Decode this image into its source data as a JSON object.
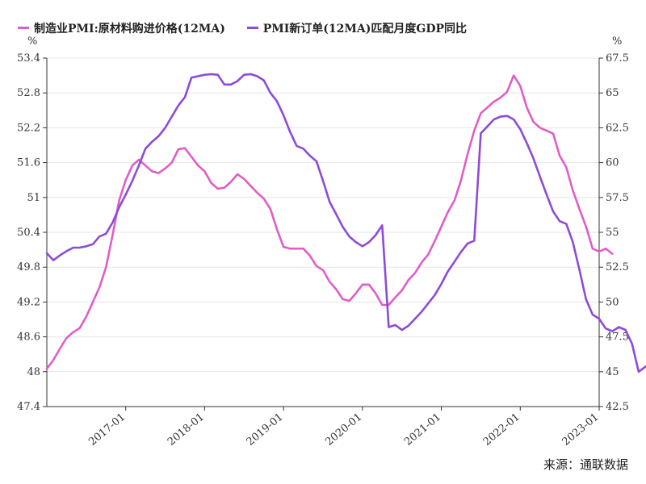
{
  "legend": [
    {
      "label": "制造业PMI:原材料购进价格(12MA)",
      "color": "#e05dc8"
    },
    {
      "label": "PMI新订单(12MA)匹配月度GDP同比",
      "color": "#8e4bd6"
    }
  ],
  "unit_left": "%",
  "unit_right": "%",
  "source": "来源：通联数据",
  "chart_data": {
    "type": "line",
    "x_range": [
      "2016-01",
      "2023-01"
    ],
    "x_ticks": [
      "2017-01",
      "2018-01",
      "2019-01",
      "2020-01",
      "2021-01",
      "2022-01",
      "2023-01"
    ],
    "y_left": {
      "ticks": [
        47.4,
        48,
        48.6,
        49.2,
        49.8,
        50.4,
        51,
        51.6,
        52.2,
        52.8,
        53.4
      ],
      "range": [
        47.4,
        53.4
      ]
    },
    "y_right": {
      "ticks": [
        42.5,
        45,
        47.5,
        50,
        52.5,
        55,
        57.5,
        60,
        62.5,
        65,
        67.5
      ],
      "range": [
        42.5,
        67.5
      ]
    },
    "grid": true,
    "legend_position": "top-left",
    "series": [
      {
        "name": "制造业PMI:原材料购进价格(12MA)",
        "axis": "left",
        "color": "#e05dc8",
        "start": "2016-01",
        "values": [
          48.05,
          48.2,
          48.4,
          48.58,
          48.68,
          48.75,
          48.95,
          49.2,
          49.45,
          49.8,
          50.35,
          50.95,
          51.3,
          51.55,
          51.65,
          51.55,
          51.45,
          51.42,
          51.5,
          51.6,
          51.83,
          51.85,
          51.7,
          51.55,
          51.45,
          51.25,
          51.15,
          51.17,
          51.27,
          51.4,
          51.32,
          51.2,
          51.08,
          50.98,
          50.8,
          50.45,
          50.15,
          50.12,
          50.12,
          50.12,
          50.0,
          49.82,
          49.75,
          49.55,
          49.42,
          49.25,
          49.22,
          49.35,
          49.5,
          49.5,
          49.35,
          49.15,
          49.15,
          49.28,
          49.4,
          49.58,
          49.7,
          49.88,
          50.02,
          50.25,
          50.5,
          50.75,
          50.95,
          51.3,
          51.75,
          52.15,
          52.45,
          52.55,
          52.65,
          52.72,
          52.82,
          53.1,
          52.92,
          52.55,
          52.3,
          52.2,
          52.15,
          52.1,
          51.72,
          51.52,
          51.12,
          50.8,
          50.5,
          50.12,
          50.07,
          50.12,
          50.03
        ]
      },
      {
        "name": "PMI新订单(12MA)匹配月度GDP同比",
        "axis": "right",
        "color": "#8e4bd6",
        "start": "2016-01",
        "values": [
          53.5,
          53.0,
          53.35,
          53.65,
          53.9,
          53.9,
          54.0,
          54.15,
          54.7,
          54.9,
          55.7,
          56.8,
          57.7,
          58.7,
          59.8,
          61.0,
          61.5,
          61.9,
          62.5,
          63.3,
          64.1,
          64.7,
          66.1,
          66.2,
          66.3,
          66.35,
          66.3,
          65.6,
          65.6,
          65.85,
          66.3,
          66.35,
          66.2,
          65.9,
          65.0,
          64.4,
          63.4,
          62.2,
          61.2,
          61.0,
          60.5,
          60.1,
          58.7,
          57.2,
          56.3,
          55.4,
          54.7,
          54.3,
          54.0,
          54.3,
          54.8,
          55.5,
          48.2,
          48.35,
          48.0,
          48.3,
          48.8,
          49.3,
          49.9,
          50.5,
          51.3,
          52.2,
          52.9,
          53.6,
          54.2,
          54.4,
          62.1,
          62.6,
          63.1,
          63.3,
          63.35,
          63.1,
          62.4,
          61.4,
          60.3,
          59.0,
          57.7,
          56.5,
          55.8,
          55.6,
          54.3,
          52.3,
          50.2,
          49.1,
          48.8,
          48.1,
          47.9,
          48.2,
          48.0,
          47.0,
          45.0,
          45.35,
          45.6
        ]
      }
    ]
  }
}
